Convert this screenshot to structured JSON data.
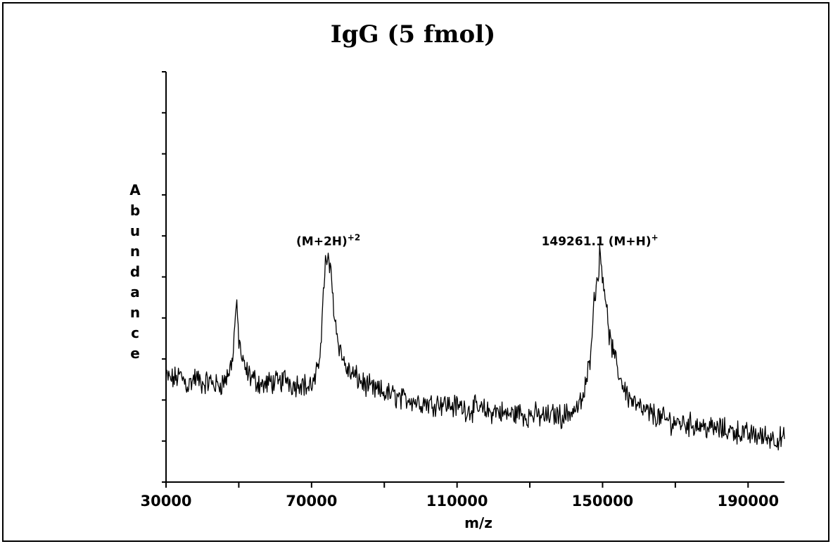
{
  "chart_data": {
    "type": "line",
    "title": "IgG (5 fmol)",
    "xlabel": "m/z",
    "ylabel": "Abundance",
    "xlim": [
      30000,
      200000
    ],
    "ylim": [
      0,
      10
    ],
    "x_ticks": [
      30000,
      70000,
      110000,
      150000,
      190000
    ],
    "y_tick_count": 10,
    "grid": false,
    "annotations": [
      {
        "text": "(M+2H)",
        "sup": "+2",
        "x": 74600,
        "y": 5.6
      },
      {
        "text": "149261.1 (M+H)",
        "sup": "+",
        "x": 149261.1,
        "y": 5.6
      }
    ],
    "series": [
      {
        "color": "#000000",
        "x": [
          30000,
          32000,
          34000,
          36000,
          38000,
          40000,
          42000,
          44000,
          46000,
          47500,
          48500,
          49200,
          49600,
          50000,
          50400,
          51000,
          52000,
          53500,
          55000,
          57000,
          59000,
          61000,
          63000,
          65000,
          67000,
          69000,
          71000,
          72000,
          72800,
          73400,
          73800,
          74200,
          74600,
          75000,
          75400,
          75800,
          76300,
          77000,
          78000,
          79000,
          80000,
          81500,
          83000,
          85000,
          87000,
          89000,
          91000,
          93000,
          95000,
          97000,
          99000,
          101000,
          103000,
          105000,
          107000,
          109000,
          111000,
          113000,
          115000,
          117000,
          119000,
          121000,
          123000,
          125000,
          127000,
          129000,
          131000,
          133000,
          135000,
          137000,
          139000,
          141000,
          143000,
          144500,
          145500,
          146500,
          147200,
          147800,
          148300,
          148800,
          149261.1,
          149700,
          150200,
          150700,
          151200,
          152000,
          153000,
          154000,
          155000,
          156000,
          157000,
          158500,
          160000,
          162000,
          164000,
          166000,
          168000,
          170000,
          172000,
          174000,
          176000,
          178000,
          180000,
          182000,
          184000,
          186000,
          188000,
          190000,
          192000,
          194000,
          196000,
          198000,
          200000
        ],
        "y": [
          2.55,
          2.5,
          2.6,
          2.35,
          2.55,
          2.4,
          2.45,
          2.35,
          2.45,
          2.7,
          3.2,
          4.3,
          4.05,
          3.5,
          3.3,
          2.9,
          2.7,
          2.55,
          2.45,
          2.35,
          2.45,
          2.4,
          2.55,
          2.35,
          2.45,
          2.3,
          2.45,
          2.9,
          3.8,
          4.8,
          5.45,
          5.1,
          5.6,
          5.2,
          5.0,
          4.6,
          4.1,
          3.6,
          3.2,
          2.9,
          2.7,
          2.6,
          2.5,
          2.35,
          2.25,
          2.2,
          2.15,
          2.1,
          2.0,
          2.05,
          1.95,
          1.95,
          1.9,
          1.95,
          1.9,
          1.85,
          1.85,
          1.75,
          1.8,
          1.75,
          1.7,
          1.75,
          1.65,
          1.65,
          1.7,
          1.6,
          1.65,
          1.6,
          1.6,
          1.65,
          1.6,
          1.7,
          1.8,
          2.0,
          2.4,
          3.0,
          3.9,
          4.5,
          4.9,
          5.1,
          5.55,
          5.3,
          5.0,
          4.6,
          4.1,
          3.5,
          3.1,
          2.8,
          2.5,
          2.3,
          2.1,
          1.95,
          1.8,
          1.7,
          1.65,
          1.55,
          1.5,
          1.45,
          1.45,
          1.4,
          1.4,
          1.35,
          1.3,
          1.3,
          1.25,
          1.25,
          1.2,
          1.15,
          1.15,
          1.1,
          1.1,
          1.05,
          1.05
        ]
      }
    ]
  }
}
